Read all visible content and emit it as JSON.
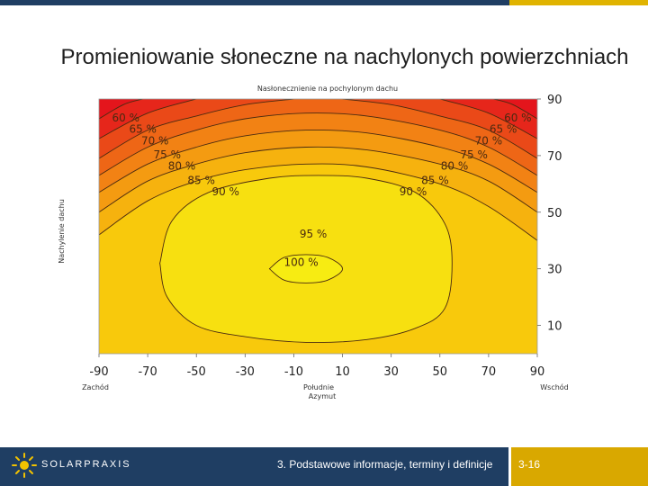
{
  "slide": {
    "title": "Promieniowanie słoneczne na nachylonych powierzchniach"
  },
  "footer": {
    "logo_text": "SOLARPRAXIS",
    "chapter": "3. Podstawowe informacje, terminy i definicje",
    "page": "3-16"
  },
  "colors": {
    "header_bar": "#1f3e63",
    "accent": "#e0b300",
    "irradiance_100": "#f7ec12",
    "irradiance_60": "#e4151c"
  },
  "chart_data": {
    "type": "heatmap",
    "title": "Nasłonecznienie na pochylonym dachu",
    "xlabel_parts": [
      "Zachód",
      "Południe",
      "Azymut",
      "Wschód"
    ],
    "ylabel": "Nachylenie dachu",
    "x_ticks": [
      "-90",
      "-70",
      "-50",
      "-30",
      "-10",
      "10",
      "30",
      "50",
      "70",
      "90"
    ],
    "y_ticks": [
      "90",
      "70",
      "50",
      "30",
      "10"
    ],
    "xlim": [
      -90,
      90
    ],
    "ylim": [
      0,
      90
    ],
    "contour_levels": [
      "60 %",
      "65 %",
      "70 %",
      "75 %",
      "80 %",
      "85 %",
      "90 %",
      "95 %",
      "100 %"
    ],
    "contours": [
      {
        "level": 60,
        "points": [
          [
            -90,
            83
          ],
          [
            -80,
            88
          ],
          [
            -72,
            90
          ]
        ],
        "points_right": [
          [
            90,
            83
          ],
          [
            80,
            88
          ],
          [
            72,
            90
          ]
        ]
      },
      {
        "level": 65,
        "points": [
          [
            -90,
            76
          ],
          [
            -70,
            85
          ],
          [
            -50,
            90
          ]
        ],
        "points_right": [
          [
            90,
            76
          ],
          [
            70,
            85
          ],
          [
            50,
            90
          ]
        ]
      },
      {
        "level": 70,
        "points": [
          [
            -90,
            69
          ],
          [
            -70,
            79
          ],
          [
            -50,
            84
          ],
          [
            -30,
            88
          ],
          [
            -10,
            90
          ]
        ],
        "points_right": [
          [
            90,
            69
          ],
          [
            70,
            79
          ],
          [
            50,
            84
          ],
          [
            30,
            88
          ],
          [
            10,
            90
          ]
        ]
      },
      {
        "level": 75,
        "points": [
          [
            -90,
            63
          ],
          [
            -70,
            73
          ],
          [
            -50,
            79
          ],
          [
            -30,
            83
          ],
          [
            -5,
            85
          ],
          [
            20,
            84
          ],
          [
            50,
            79
          ],
          [
            70,
            73
          ],
          [
            90,
            63
          ]
        ]
      },
      {
        "level": 80,
        "points": [
          [
            -90,
            57
          ],
          [
            -70,
            67
          ],
          [
            -50,
            73
          ],
          [
            -30,
            77
          ],
          [
            -5,
            79
          ],
          [
            20,
            78
          ],
          [
            50,
            73
          ],
          [
            70,
            67
          ],
          [
            90,
            57
          ]
        ]
      },
      {
        "level": 85,
        "points": [
          [
            -90,
            50
          ],
          [
            -70,
            61
          ],
          [
            -50,
            67
          ],
          [
            -30,
            71
          ],
          [
            -5,
            73
          ],
          [
            20,
            72
          ],
          [
            50,
            67
          ],
          [
            70,
            61
          ],
          [
            90,
            50
          ]
        ]
      },
      {
        "level": 90,
        "points": [
          [
            -90,
            42
          ],
          [
            -70,
            54
          ],
          [
            -50,
            61
          ],
          [
            -30,
            65
          ],
          [
            -5,
            67
          ],
          [
            20,
            66
          ],
          [
            50,
            60
          ],
          [
            70,
            52
          ],
          [
            90,
            40
          ]
        ]
      },
      {
        "level": 95,
        "points": [
          [
            -65,
            32
          ],
          [
            -60,
            47
          ],
          [
            -45,
            57
          ],
          [
            -20,
            62
          ],
          [
            0,
            63
          ],
          [
            20,
            62
          ],
          [
            40,
            57
          ],
          [
            52,
            46
          ],
          [
            55,
            32
          ],
          [
            52,
            16
          ],
          [
            40,
            9
          ],
          [
            20,
            5
          ],
          [
            -5,
            4
          ],
          [
            -30,
            6
          ],
          [
            -50,
            10
          ],
          [
            -62,
            20
          ],
          [
            -65,
            32
          ]
        ]
      },
      {
        "level": 100,
        "points": [
          [
            -20,
            30
          ],
          [
            -14,
            34
          ],
          [
            -5,
            35
          ],
          [
            4,
            34
          ],
          [
            10,
            30
          ],
          [
            4,
            26
          ],
          [
            -5,
            25
          ],
          [
            -14,
            26
          ],
          [
            -20,
            30
          ]
        ]
      }
    ],
    "contour_labels": [
      {
        "text": "60 %",
        "x": -79,
        "y": 82
      },
      {
        "text": "65 %",
        "x": -72,
        "y": 78
      },
      {
        "text": "70 %",
        "x": -67,
        "y": 74
      },
      {
        "text": "75 %",
        "x": -62,
        "y": 69
      },
      {
        "text": "80 %",
        "x": -56,
        "y": 65
      },
      {
        "text": "85 %",
        "x": -48,
        "y": 60
      },
      {
        "text": "90 %",
        "x": -38,
        "y": 56
      },
      {
        "text": "95 %",
        "x": -2,
        "y": 41
      },
      {
        "text": "100 %",
        "x": -7,
        "y": 31
      },
      {
        "text": "60 %",
        "x": 82,
        "y": 82
      },
      {
        "text": "65 %",
        "x": 76,
        "y": 78
      },
      {
        "text": "70 %",
        "x": 70,
        "y": 74
      },
      {
        "text": "75 %",
        "x": 64,
        "y": 69
      },
      {
        "text": "80 %",
        "x": 56,
        "y": 65
      },
      {
        "text": "85 %",
        "x": 48,
        "y": 60
      },
      {
        "text": "90 %",
        "x": 39,
        "y": 56
      }
    ],
    "grid": false
  }
}
